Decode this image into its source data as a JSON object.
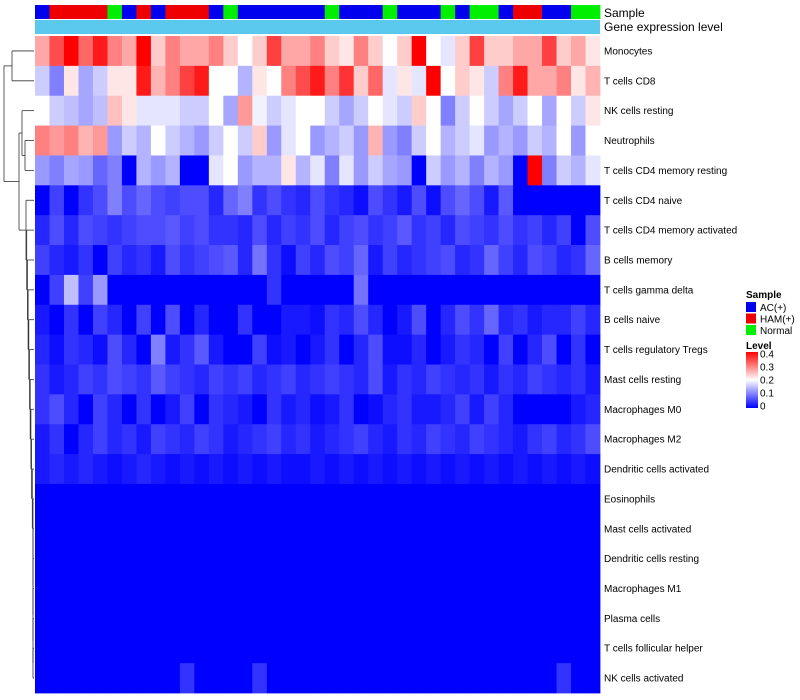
{
  "chart_data": {
    "type": "heatmap",
    "title": "",
    "annotation_labels": {
      "sample": "Sample",
      "gene": "Gene expression level"
    },
    "legend": {
      "sample_title": "Sample",
      "sample_entries": [
        {
          "label": "AC(+)",
          "color": "#0000ee"
        },
        {
          "label": "HAM(+)",
          "color": "#ee0000"
        },
        {
          "label": "Normal",
          "color": "#00ee00"
        }
      ],
      "level_title": "Level",
      "level_ticks": [
        "0.4",
        "0.3",
        "0.2",
        "0.1",
        "0"
      ],
      "level_colors": {
        "low": "#0000ff",
        "mid": "#ffffff",
        "high": "#ff0000"
      },
      "level_range": [
        0,
        0.4
      ]
    },
    "gene_bar_color": "#5bc8ee",
    "sample_groups": [
      "A",
      "H",
      "H",
      "H",
      "H",
      "N",
      "A",
      "H",
      "A",
      "H",
      "H",
      "H",
      "A",
      "N",
      "A",
      "A",
      "A",
      "A",
      "A",
      "A",
      "N",
      "A",
      "A",
      "A",
      "N",
      "A",
      "A",
      "A",
      "N",
      "A",
      "N",
      "N",
      "A",
      "H",
      "H",
      "A",
      "A",
      "N",
      "N"
    ],
    "rows": [
      "Monocytes",
      "T cells CD8",
      "NK cells resting",
      "Neutrophils",
      "T cells CD4 memory resting",
      "T cells CD4 naive",
      "T cells CD4 memory activated",
      "B cells memory",
      "T cells gamma delta",
      "B cells naive",
      "T cells regulatory  Tregs",
      "Mast cells resting",
      "Macrophages M0",
      "Macrophages M2",
      "Dendritic cells activated",
      "Eosinophils",
      "Mast cells activated",
      "Dendritic cells resting",
      "Macrophages M1",
      "Plasma cells",
      "T cells follicular helper",
      "NK cells activated"
    ],
    "values": [
      [
        0.27,
        0.34,
        0.4,
        0.32,
        0.38,
        0.3,
        0.27,
        0.4,
        0.24,
        0.3,
        0.27,
        0.27,
        0.3,
        0.24,
        0.2,
        0.24,
        0.35,
        0.27,
        0.27,
        0.3,
        0.24,
        0.22,
        0.3,
        0.24,
        0.2,
        0.24,
        0.4,
        0.2,
        0.18,
        0.24,
        0.35,
        0.24,
        0.24,
        0.27,
        0.27,
        0.35,
        0.24,
        0.27,
        0.22
      ],
      [
        0.16,
        0.1,
        0.22,
        0.13,
        0.16,
        0.22,
        0.22,
        0.38,
        0.26,
        0.3,
        0.35,
        0.38,
        0.2,
        0.2,
        0.14,
        0.22,
        0.2,
        0.3,
        0.34,
        0.38,
        0.3,
        0.36,
        0.24,
        0.32,
        0.18,
        0.22,
        0.18,
        0.4,
        0.2,
        0.24,
        0.22,
        0.16,
        0.3,
        0.38,
        0.27,
        0.27,
        0.3,
        0.22,
        0.26
      ],
      [
        0.2,
        0.16,
        0.15,
        0.13,
        0.15,
        0.25,
        0.22,
        0.18,
        0.18,
        0.18,
        0.16,
        0.16,
        0.2,
        0.13,
        0.28,
        0.19,
        0.16,
        0.18,
        0.2,
        0.2,
        0.16,
        0.13,
        0.16,
        0.2,
        0.18,
        0.16,
        0.24,
        0.2,
        0.1,
        0.16,
        0.2,
        0.16,
        0.13,
        0.16,
        0.2,
        0.13,
        0.2,
        0.16,
        0.22
      ],
      [
        0.3,
        0.28,
        0.3,
        0.26,
        0.28,
        0.12,
        0.16,
        0.14,
        0.2,
        0.16,
        0.14,
        0.12,
        0.16,
        0.2,
        0.16,
        0.24,
        0.12,
        0.18,
        0.2,
        0.12,
        0.14,
        0.16,
        0.12,
        0.26,
        0.12,
        0.1,
        0.16,
        0.2,
        0.14,
        0.16,
        0.18,
        0.12,
        0.14,
        0.12,
        0.16,
        0.14,
        0.2,
        0.12,
        0.2
      ],
      [
        0.12,
        0.1,
        0.13,
        0.12,
        0.08,
        0.1,
        0.0,
        0.14,
        0.12,
        0.14,
        0.0,
        0.0,
        0.18,
        0.2,
        0.12,
        0.14,
        0.14,
        0.22,
        0.14,
        0.18,
        0.1,
        0.18,
        0.12,
        0.16,
        0.13,
        0.12,
        0.0,
        0.16,
        0.12,
        0.14,
        0.1,
        0.14,
        0.12,
        0.0,
        0.4,
        0.1,
        0.16,
        0.14,
        0.18
      ],
      [
        0.0,
        0.05,
        0.0,
        0.04,
        0.06,
        0.1,
        0.06,
        0.08,
        0.06,
        0.05,
        0.06,
        0.06,
        0.03,
        0.08,
        0.1,
        0.04,
        0.06,
        0.04,
        0.03,
        0.06,
        0.04,
        0.03,
        0.01,
        0.06,
        0.04,
        0.02,
        0.06,
        0.01,
        0.06,
        0.08,
        0.06,
        0.02,
        0.07,
        0.0,
        0.0,
        0.0,
        0.0,
        0.0,
        0.0
      ],
      [
        0.03,
        0.06,
        0.03,
        0.06,
        0.05,
        0.04,
        0.05,
        0.06,
        0.06,
        0.07,
        0.05,
        0.06,
        0.04,
        0.04,
        0.03,
        0.06,
        0.03,
        0.05,
        0.04,
        0.06,
        0.03,
        0.05,
        0.06,
        0.04,
        0.05,
        0.07,
        0.04,
        0.05,
        0.03,
        0.06,
        0.05,
        0.04,
        0.06,
        0.04,
        0.05,
        0.03,
        0.05,
        0.0,
        0.06
      ],
      [
        0.05,
        0.03,
        0.02,
        0.04,
        0.0,
        0.05,
        0.03,
        0.04,
        0.02,
        0.06,
        0.04,
        0.05,
        0.06,
        0.07,
        0.03,
        0.09,
        0.04,
        0.01,
        0.05,
        0.03,
        0.06,
        0.05,
        0.08,
        0.02,
        0.05,
        0.03,
        0.04,
        0.05,
        0.06,
        0.03,
        0.04,
        0.08,
        0.05,
        0.03,
        0.06,
        0.05,
        0.03,
        0.04,
        0.08
      ],
      [
        0.0,
        0.05,
        0.15,
        0.05,
        0.12,
        0.0,
        0.0,
        0.0,
        0.0,
        0.0,
        0.0,
        0.0,
        0.0,
        0.0,
        0.0,
        0.0,
        0.04,
        0.0,
        0.0,
        0.0,
        0.0,
        0.0,
        0.09,
        0.0,
        0.0,
        0.0,
        0.0,
        0.0,
        0.0,
        0.0,
        0.0,
        0.0,
        0.0,
        0.0,
        0.0,
        0.0,
        0.0,
        0.0,
        0.0
      ],
      [
        0.02,
        0.0,
        0.04,
        0.0,
        0.05,
        0.03,
        0.0,
        0.05,
        0.0,
        0.06,
        0.0,
        0.03,
        0.0,
        0.0,
        0.04,
        0.0,
        0.0,
        0.02,
        0.02,
        0.01,
        0.04,
        0.03,
        0.06,
        0.03,
        0.0,
        0.02,
        0.06,
        0.0,
        0.03,
        0.06,
        0.04,
        0.08,
        0.03,
        0.04,
        0.02,
        0.03,
        0.03,
        0.05,
        0.03
      ],
      [
        0.03,
        0.01,
        0.04,
        0.03,
        0.01,
        0.06,
        0.03,
        0.0,
        0.1,
        0.02,
        0.04,
        0.07,
        0.02,
        0.0,
        0.0,
        0.05,
        0.01,
        0.02,
        0.0,
        0.02,
        0.04,
        0.0,
        0.03,
        0.06,
        0.01,
        0.01,
        0.03,
        0.0,
        0.02,
        0.04,
        0.03,
        0.0,
        0.05,
        0.0,
        0.03,
        0.06,
        0.0,
        0.04,
        0.0
      ],
      [
        0.04,
        0.02,
        0.03,
        0.05,
        0.04,
        0.06,
        0.05,
        0.04,
        0.07,
        0.05,
        0.04,
        0.03,
        0.05,
        0.04,
        0.05,
        0.03,
        0.04,
        0.05,
        0.03,
        0.04,
        0.05,
        0.04,
        0.03,
        0.06,
        0.02,
        0.04,
        0.03,
        0.05,
        0.04,
        0.03,
        0.04,
        0.02,
        0.04,
        0.03,
        0.05,
        0.04,
        0.03,
        0.04,
        0.02
      ],
      [
        0.04,
        0.06,
        0.03,
        0.0,
        0.05,
        0.03,
        0.0,
        0.04,
        0.0,
        0.02,
        0.05,
        0.0,
        0.04,
        0.03,
        0.02,
        0.0,
        0.04,
        0.02,
        0.03,
        0.01,
        0.02,
        0.04,
        0.0,
        0.01,
        0.03,
        0.04,
        0.02,
        0.02,
        0.03,
        0.05,
        0.02,
        0.05,
        0.03,
        0.0,
        0.0,
        0.0,
        0.0,
        0.02,
        0.03
      ],
      [
        0.02,
        0.04,
        0.0,
        0.03,
        0.05,
        0.03,
        0.04,
        0.02,
        0.05,
        0.04,
        0.03,
        0.05,
        0.04,
        0.02,
        0.03,
        0.04,
        0.05,
        0.03,
        0.04,
        0.02,
        0.03,
        0.04,
        0.05,
        0.03,
        0.02,
        0.04,
        0.03,
        0.05,
        0.04,
        0.03,
        0.05,
        0.04,
        0.03,
        0.02,
        0.04,
        0.05,
        0.03,
        0.04,
        0.06
      ],
      [
        0.02,
        0.03,
        0.02,
        0.03,
        0.02,
        0.01,
        0.02,
        0.03,
        0.02,
        0.01,
        0.02,
        0.01,
        0.02,
        0.01,
        0.02,
        0.01,
        0.02,
        0.01,
        0.01,
        0.02,
        0.01,
        0.02,
        0.01,
        0.02,
        0.01,
        0.02,
        0.01,
        0.02,
        0.01,
        0.02,
        0.01,
        0.02,
        0.01,
        0.02,
        0.01,
        0.02,
        0.01,
        0.02,
        0.01
      ],
      [
        0,
        0,
        0,
        0,
        0,
        0,
        0,
        0,
        0,
        0,
        0,
        0,
        0,
        0,
        0,
        0,
        0,
        0,
        0,
        0,
        0,
        0,
        0,
        0,
        0,
        0,
        0,
        0,
        0,
        0,
        0,
        0,
        0,
        0,
        0,
        0,
        0,
        0,
        0
      ],
      [
        0,
        0,
        0,
        0,
        0,
        0,
        0,
        0,
        0,
        0,
        0,
        0,
        0,
        0,
        0,
        0,
        0,
        0,
        0,
        0,
        0,
        0,
        0,
        0,
        0,
        0,
        0,
        0,
        0,
        0,
        0,
        0,
        0,
        0,
        0,
        0,
        0,
        0,
        0
      ],
      [
        0,
        0,
        0,
        0,
        0,
        0,
        0,
        0,
        0,
        0,
        0,
        0,
        0,
        0,
        0,
        0,
        0,
        0,
        0,
        0,
        0,
        0,
        0,
        0,
        0,
        0,
        0,
        0,
        0,
        0,
        0,
        0,
        0,
        0,
        0,
        0,
        0,
        0,
        0
      ],
      [
        0,
        0,
        0,
        0,
        0,
        0,
        0,
        0,
        0,
        0,
        0,
        0,
        0,
        0,
        0,
        0,
        0,
        0,
        0,
        0,
        0,
        0,
        0,
        0,
        0,
        0,
        0,
        0,
        0,
        0,
        0,
        0,
        0,
        0,
        0,
        0,
        0,
        0,
        0
      ],
      [
        0,
        0,
        0,
        0,
        0,
        0,
        0,
        0,
        0,
        0,
        0,
        0,
        0,
        0,
        0,
        0,
        0,
        0,
        0,
        0,
        0,
        0,
        0,
        0,
        0,
        0,
        0,
        0,
        0,
        0,
        0,
        0,
        0,
        0,
        0,
        0,
        0,
        0,
        0
      ],
      [
        0,
        0,
        0,
        0,
        0,
        0,
        0,
        0,
        0,
        0,
        0,
        0,
        0,
        0,
        0,
        0,
        0,
        0,
        0,
        0,
        0,
        0,
        0,
        0,
        0,
        0,
        0,
        0,
        0,
        0,
        0,
        0,
        0,
        0,
        0,
        0,
        0,
        0,
        0
      ],
      [
        0,
        0,
        0,
        0,
        0,
        0,
        0,
        0,
        0,
        0,
        0.04,
        0,
        0,
        0,
        0,
        0.04,
        0,
        0,
        0,
        0,
        0,
        0,
        0,
        0,
        0,
        0,
        0,
        0,
        0,
        0,
        0,
        0,
        0,
        0,
        0,
        0,
        0.04,
        0,
        0
      ]
    ]
  }
}
